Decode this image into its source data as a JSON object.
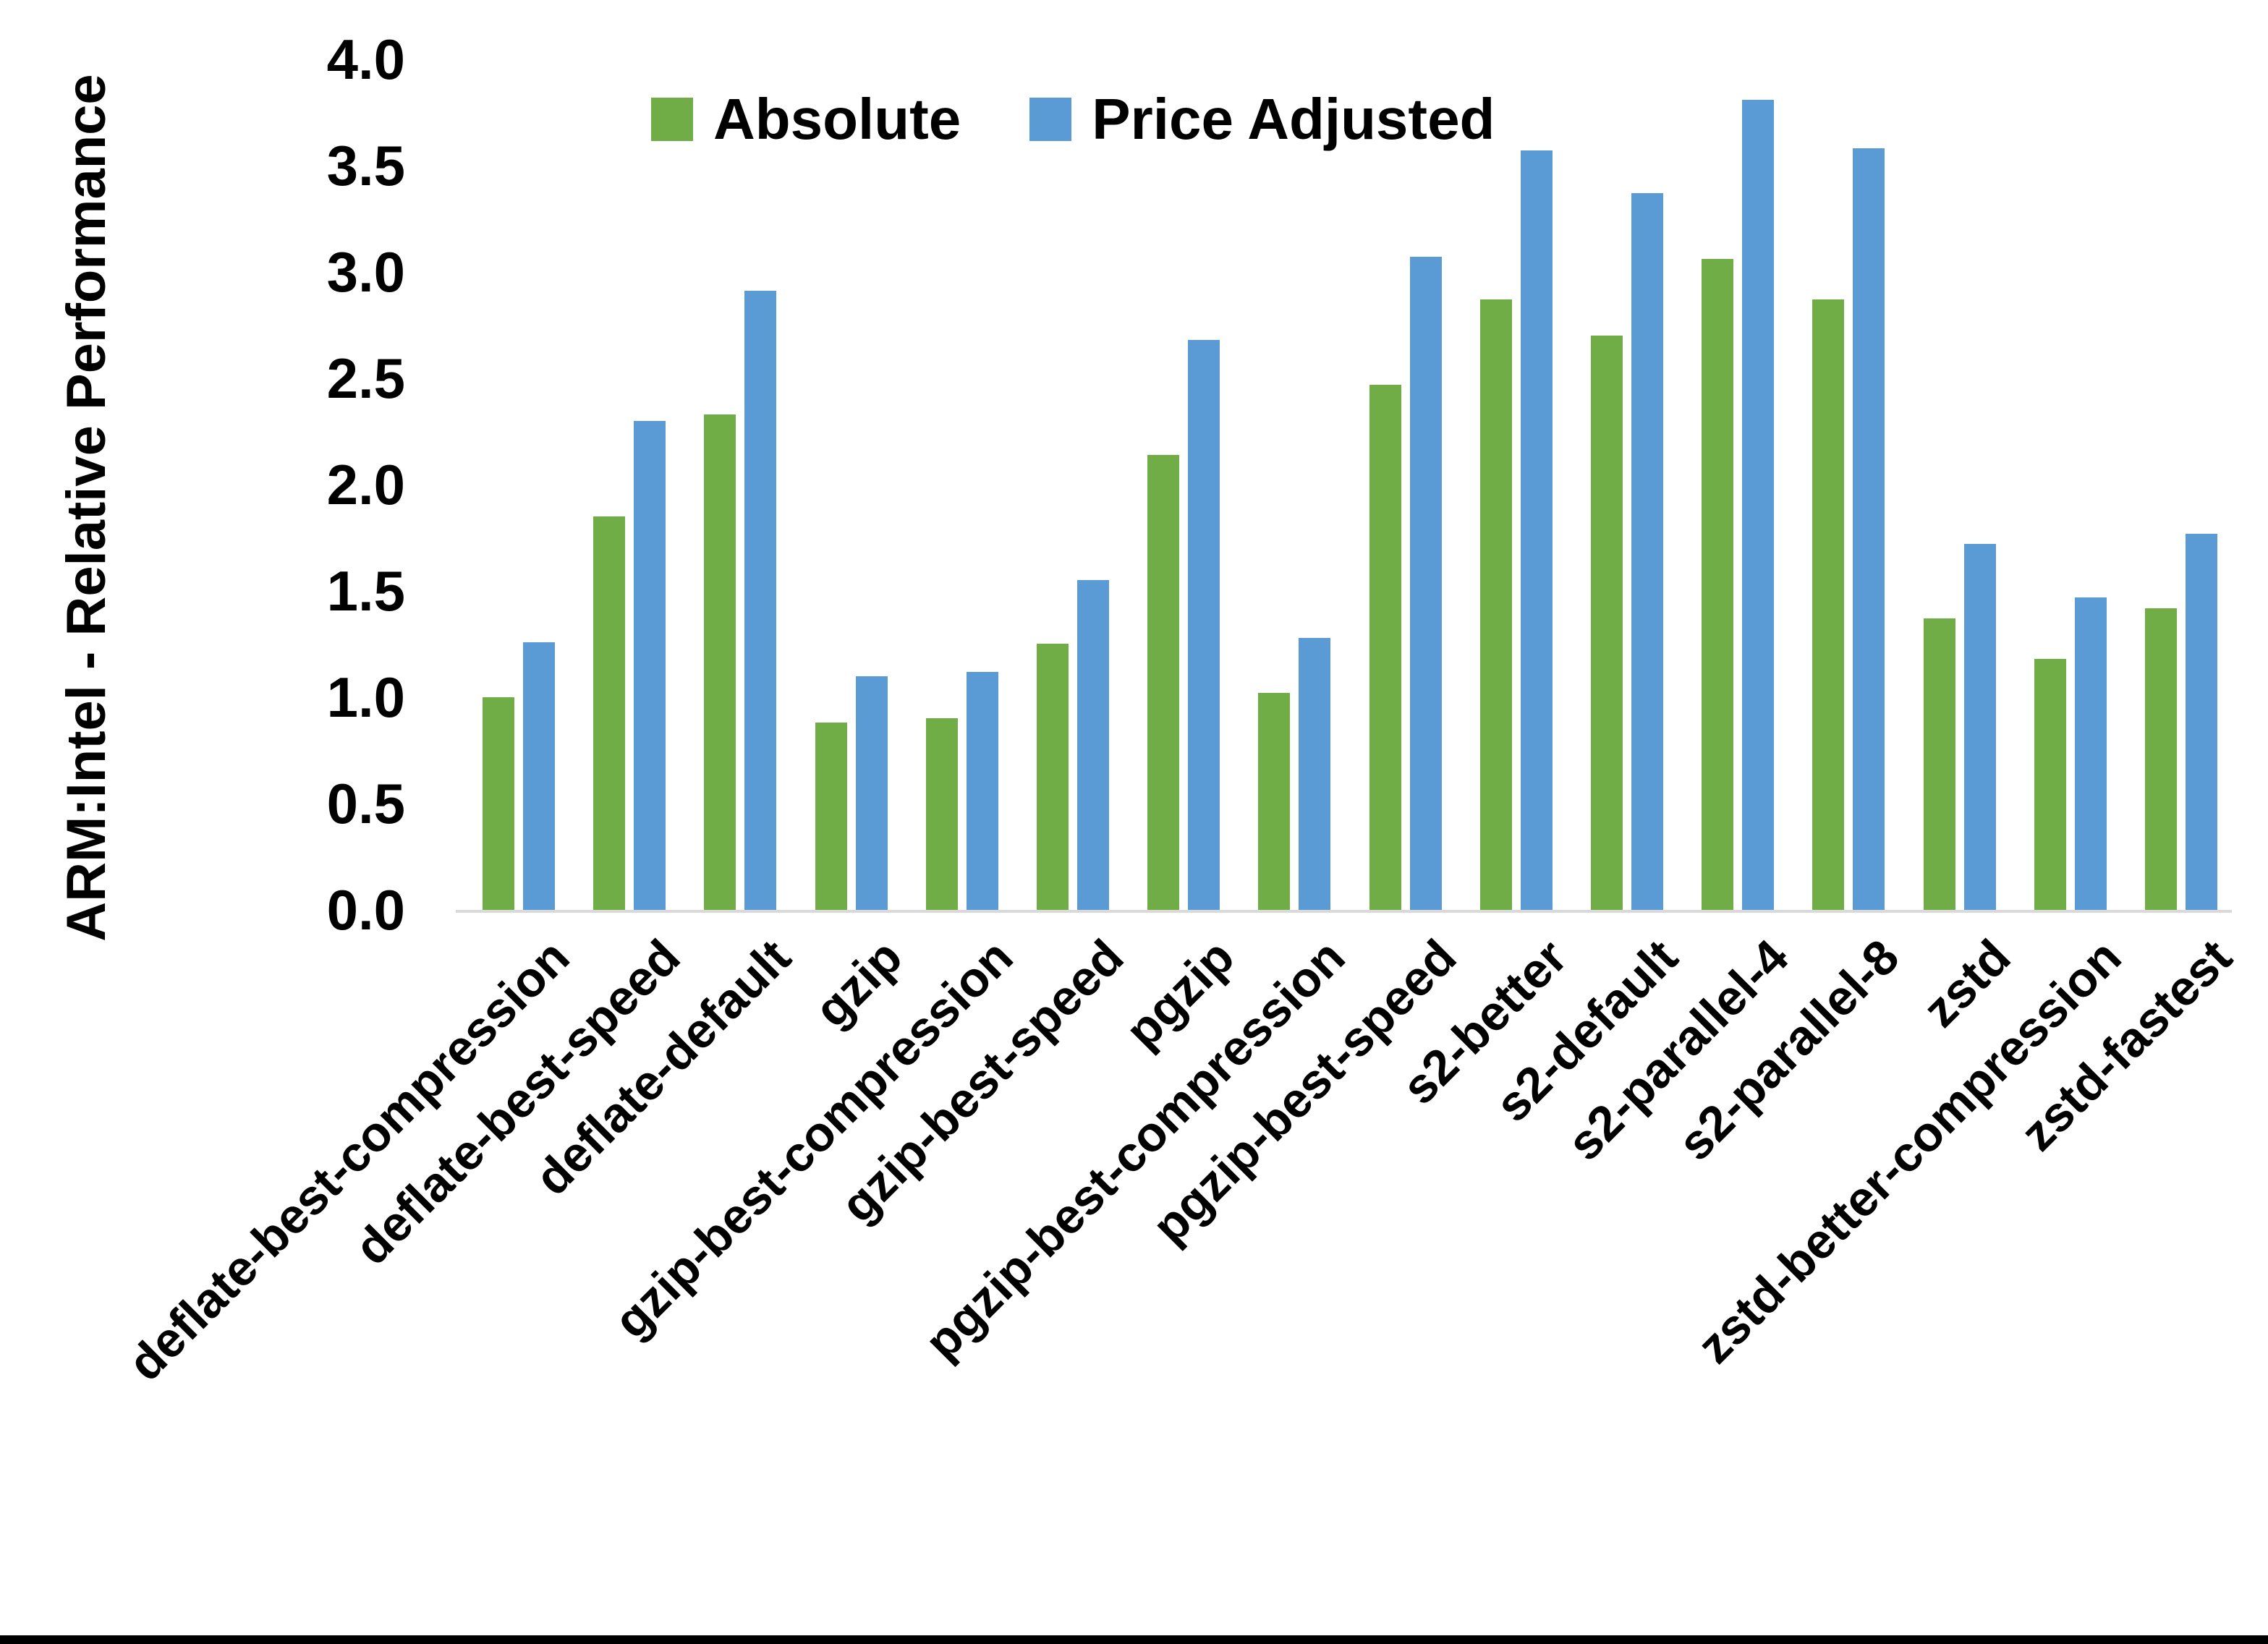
{
  "page": {
    "background": "#FFFFFF",
    "bottom_border_color": "#000000",
    "axis_line_color": "#D9D9D9"
  },
  "y_axis": {
    "title": "ARM:Intel - Relative Performance",
    "tick_labels": [
      "4.0",
      "3.5",
      "3.0",
      "2.5",
      "2.0",
      "1.5",
      "1.0",
      "0.5",
      "0.0"
    ],
    "min": 0.0,
    "max": 4.0,
    "step": 0.5
  },
  "legend": {
    "items": [
      {
        "label": "Absolute",
        "color": "#70AD47"
      },
      {
        "label": "Price Adjusted",
        "color": "#5B9BD5"
      }
    ],
    "position": "top-center"
  },
  "chart_data": {
    "type": "bar",
    "title": "",
    "xlabel": "",
    "ylabel": "ARM:Intel - Relative Performance",
    "ylim": [
      0,
      4
    ],
    "grid": false,
    "legend_position": "top",
    "categories": [
      "deflate-best-compression",
      "deflate-best-speed",
      "deflate-default",
      "gzip",
      "gzip-best-compression",
      "gzip-best-speed",
      "pgzip",
      "pgzip-best-compression",
      "pgzip-best-speed",
      "s2-better",
      "s2-default",
      "s2-parallel-4",
      "s2-parallel-8",
      "zstd",
      "zstd-better-compression",
      "zstd-fastest"
    ],
    "series": [
      {
        "name": "Absolute",
        "color": "#70AD47",
        "values": [
          1.0,
          1.85,
          2.33,
          0.88,
          0.9,
          1.25,
          2.14,
          1.02,
          2.47,
          2.87,
          2.7,
          3.06,
          2.87,
          1.37,
          1.18,
          1.42
        ]
      },
      {
        "name": "Price Adjusted",
        "color": "#5B9BD5",
        "values": [
          1.26,
          2.3,
          2.91,
          1.1,
          1.12,
          1.55,
          2.68,
          1.28,
          3.07,
          3.57,
          3.37,
          3.81,
          3.58,
          1.72,
          1.47,
          1.77
        ]
      }
    ]
  }
}
